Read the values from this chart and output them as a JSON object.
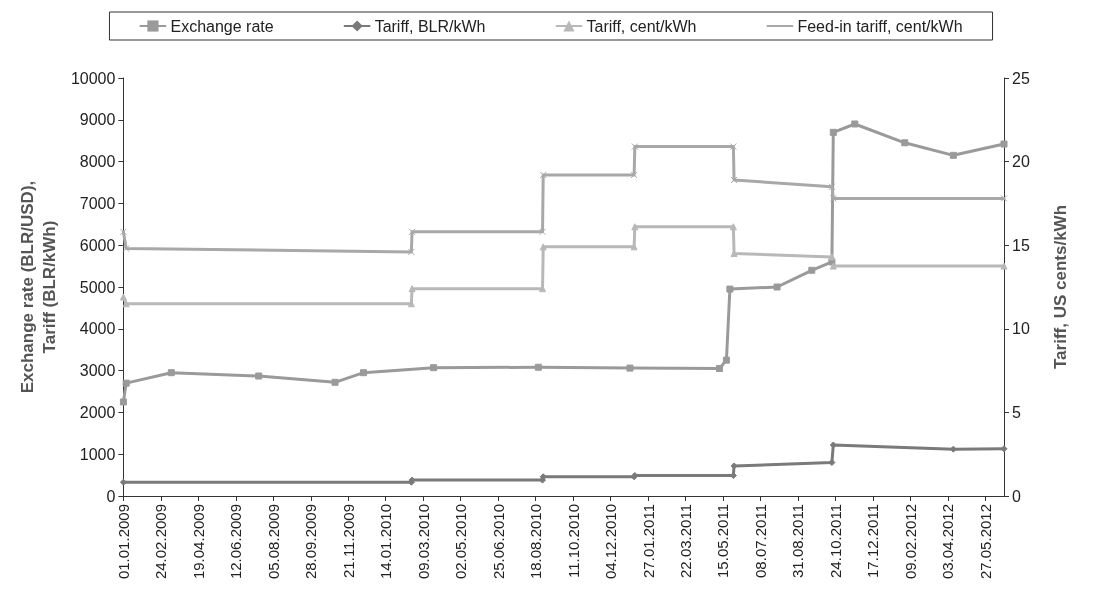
{
  "chart_data": {
    "type": "line",
    "ylabel": "Exchange rate (BLR/USD),\nTariff (BLR/kWh)",
    "y2label": "Tariff, US cents/kWh",
    "legend": "top",
    "grid": false,
    "xlim": [
      "2009-01-01",
      "2012-06-23"
    ],
    "xticks": [
      {
        "value": "2009-01-01",
        "label": "01.01.2009"
      },
      {
        "value": "2009-02-24",
        "label": "24.02.2009"
      },
      {
        "value": "2009-04-19",
        "label": "19.04.2009"
      },
      {
        "value": "2009-06-12",
        "label": "12.06.2009"
      },
      {
        "value": "2009-08-05",
        "label": "05.08.2009"
      },
      {
        "value": "2009-09-28",
        "label": "28.09.2009"
      },
      {
        "value": "2009-11-21",
        "label": "21.11.2009"
      },
      {
        "value": "2010-01-14",
        "label": "14.01.2010"
      },
      {
        "value": "2010-03-09",
        "label": "09.03.2010"
      },
      {
        "value": "2010-05-02",
        "label": "02.05.2010"
      },
      {
        "value": "2010-06-25",
        "label": "25.06.2010"
      },
      {
        "value": "2010-08-18",
        "label": "18.08.2010"
      },
      {
        "value": "2010-10-11",
        "label": "11.10.2010"
      },
      {
        "value": "2010-12-04",
        "label": "04.12.2010"
      },
      {
        "value": "2011-01-27",
        "label": "27.01.2011"
      },
      {
        "value": "2011-03-22",
        "label": "22.03.2011"
      },
      {
        "value": "2011-05-15",
        "label": "15.05.2011"
      },
      {
        "value": "2011-07-08",
        "label": "08.07.2011"
      },
      {
        "value": "2011-08-31",
        "label": "31.08.2011"
      },
      {
        "value": "2011-10-24",
        "label": "24.10.2011"
      },
      {
        "value": "2011-12-17",
        "label": "17.12.2011"
      },
      {
        "value": "2012-02-09",
        "label": "09.02.2012"
      },
      {
        "value": "2012-04-03",
        "label": "03.04.2012"
      },
      {
        "value": "2012-05-27",
        "label": "27.05.2012"
      }
    ],
    "ylim": [
      0,
      10000
    ],
    "yticks": [
      0,
      1000,
      2000,
      3000,
      4000,
      5000,
      6000,
      7000,
      8000,
      9000,
      10000
    ],
    "y2lim": [
      0,
      25
    ],
    "y2ticks": [
      0,
      5,
      10,
      15,
      20,
      25
    ],
    "series": [
      {
        "name": "Exchange rate",
        "color": "#9a9a9a",
        "marker": "square",
        "axis": "y",
        "x": [
          "2009-01-01",
          "2009-01-05",
          "2009-03-11",
          "2009-07-15",
          "2009-11-02",
          "2009-12-13",
          "2010-03-24",
          "2010-08-22",
          "2011-01-01",
          "2011-05-10",
          "2011-05-20",
          "2011-05-25",
          "2011-08-01",
          "2011-09-20",
          "2011-10-19",
          "2011-10-21",
          "2011-11-21",
          "2012-02-01",
          "2012-04-11",
          "2012-06-23"
        ],
        "values": [
          2250,
          2700,
          2950,
          2870,
          2720,
          2950,
          3070,
          3080,
          3060,
          3050,
          3250,
          4950,
          5000,
          5400,
          5600,
          8700,
          8900,
          8450,
          8150,
          8420
        ]
      },
      {
        "name": "Tariff, BLR/kWh",
        "color": "#7a7a7a",
        "marker": "diamond",
        "axis": "y",
        "x": [
          "2009-01-01",
          "2010-02-20",
          "2010-02-21",
          "2010-08-28",
          "2010-08-29",
          "2011-01-07",
          "2011-01-08",
          "2011-05-30",
          "2011-05-31",
          "2011-10-19",
          "2011-10-21",
          "2012-04-11",
          "2012-06-23"
        ],
        "values": [
          330,
          330,
          380,
          380,
          460,
          460,
          490,
          490,
          720,
          800,
          1220,
          1120,
          1130
        ]
      },
      {
        "name": "Tariff, cent/kWh",
        "color": "#b8b8b8",
        "marker": "triangle",
        "axis": "y2",
        "x": [
          "2009-01-01",
          "2009-01-05",
          "2010-02-20",
          "2010-02-21",
          "2010-08-28",
          "2010-08-29",
          "2011-01-07",
          "2011-01-08",
          "2011-05-30",
          "2011-05-31",
          "2011-10-19",
          "2011-10-21",
          "2012-06-23"
        ],
        "values": [
          11.9,
          11.5,
          11.5,
          12.4,
          12.4,
          14.9,
          14.9,
          16.1,
          16.1,
          14.5,
          14.3,
          13.75,
          13.75
        ]
      },
      {
        "name": "Feed-in tariff, cent/kWh",
        "color": "#a8a8a8",
        "marker": "cross",
        "axis": "y2",
        "x": [
          "2009-01-01",
          "2009-01-05",
          "2010-02-20",
          "2010-02-21",
          "2010-08-28",
          "2010-08-29",
          "2011-01-07",
          "2011-01-08",
          "2011-05-30",
          "2011-05-31",
          "2011-10-19",
          "2011-10-21",
          "2012-06-23"
        ],
        "values": [
          15.8,
          14.8,
          14.6,
          15.8,
          15.8,
          19.2,
          19.2,
          20.9,
          20.9,
          18.9,
          18.5,
          17.8,
          17.8
        ]
      }
    ]
  }
}
